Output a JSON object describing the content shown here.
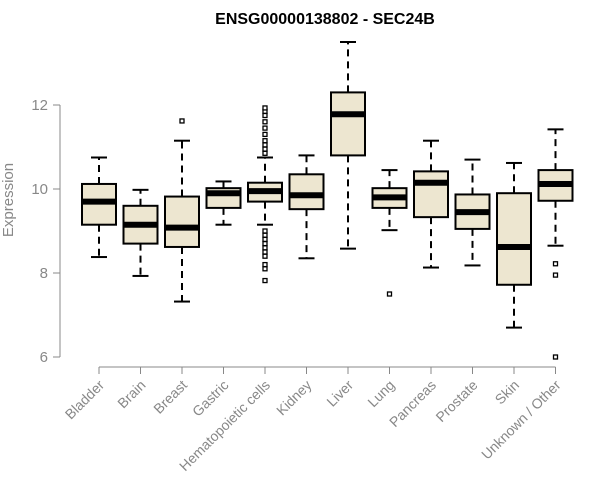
{
  "chart_data": {
    "type": "box",
    "title": "ENSG00000138802 - SEC24B",
    "xlabel": "",
    "ylabel": "Expression",
    "ylim": [
      6,
      13.5
    ],
    "yticks": [
      6,
      8,
      10,
      12
    ],
    "grid": false,
    "box_color": "#ede6d0",
    "categories": [
      "Bladder",
      "Brain",
      "Breast",
      "Gastric",
      "Hematopoietic cells",
      "Kidney",
      "Liver",
      "Lung",
      "Pancreas",
      "Prostate",
      "Skin",
      "Unknown / Other"
    ],
    "boxes": [
      {
        "name": "Bladder",
        "whisker_low": 8.38,
        "q1": 9.15,
        "median": 9.7,
        "q3": 10.12,
        "whisker_high": 10.75,
        "outliers": []
      },
      {
        "name": "Brain",
        "whisker_low": 7.93,
        "q1": 8.7,
        "median": 9.15,
        "q3": 9.6,
        "whisker_high": 9.98,
        "outliers": []
      },
      {
        "name": "Breast",
        "whisker_low": 7.32,
        "q1": 8.62,
        "median": 9.08,
        "q3": 9.82,
        "whisker_high": 11.15,
        "outliers": [
          11.62
        ]
      },
      {
        "name": "Gastric",
        "whisker_low": 9.15,
        "q1": 9.55,
        "median": 9.9,
        "q3": 10.02,
        "whisker_high": 10.18,
        "outliers": []
      },
      {
        "name": "Hematopoietic cells",
        "whisker_low": 9.15,
        "q1": 9.7,
        "median": 9.95,
        "q3": 10.15,
        "whisker_high": 10.75,
        "outliers": [
          7.82,
          8.1,
          8.2,
          8.4,
          8.5,
          8.6,
          8.7,
          8.8,
          8.9,
          9.0,
          10.85,
          10.95,
          11.05,
          11.15,
          11.3,
          11.45,
          11.6,
          11.75,
          11.85,
          11.93
        ]
      },
      {
        "name": "Kidney",
        "whisker_low": 8.35,
        "q1": 9.52,
        "median": 9.85,
        "q3": 10.35,
        "whisker_high": 10.8,
        "outliers": []
      },
      {
        "name": "Liver",
        "whisker_low": 8.58,
        "q1": 10.8,
        "median": 11.78,
        "q3": 12.3,
        "whisker_high": 13.5,
        "outliers": []
      },
      {
        "name": "Lung",
        "whisker_low": 9.02,
        "q1": 9.55,
        "median": 9.8,
        "q3": 10.02,
        "whisker_high": 10.45,
        "outliers": [
          7.5
        ]
      },
      {
        "name": "Pancreas",
        "whisker_low": 8.13,
        "q1": 9.33,
        "median": 10.15,
        "q3": 10.42,
        "whisker_high": 11.15,
        "outliers": []
      },
      {
        "name": "Prostate",
        "whisker_low": 8.18,
        "q1": 9.05,
        "median": 9.45,
        "q3": 9.87,
        "whisker_high": 10.7,
        "outliers": []
      },
      {
        "name": "Skin",
        "whisker_low": 6.7,
        "q1": 7.72,
        "median": 8.62,
        "q3": 9.9,
        "whisker_high": 10.62,
        "outliers": []
      },
      {
        "name": "Unknown / Other",
        "whisker_low": 8.65,
        "q1": 9.72,
        "median": 10.12,
        "q3": 10.45,
        "whisker_high": 11.42,
        "outliers": [
          6.0,
          7.95,
          8.22
        ]
      }
    ]
  }
}
